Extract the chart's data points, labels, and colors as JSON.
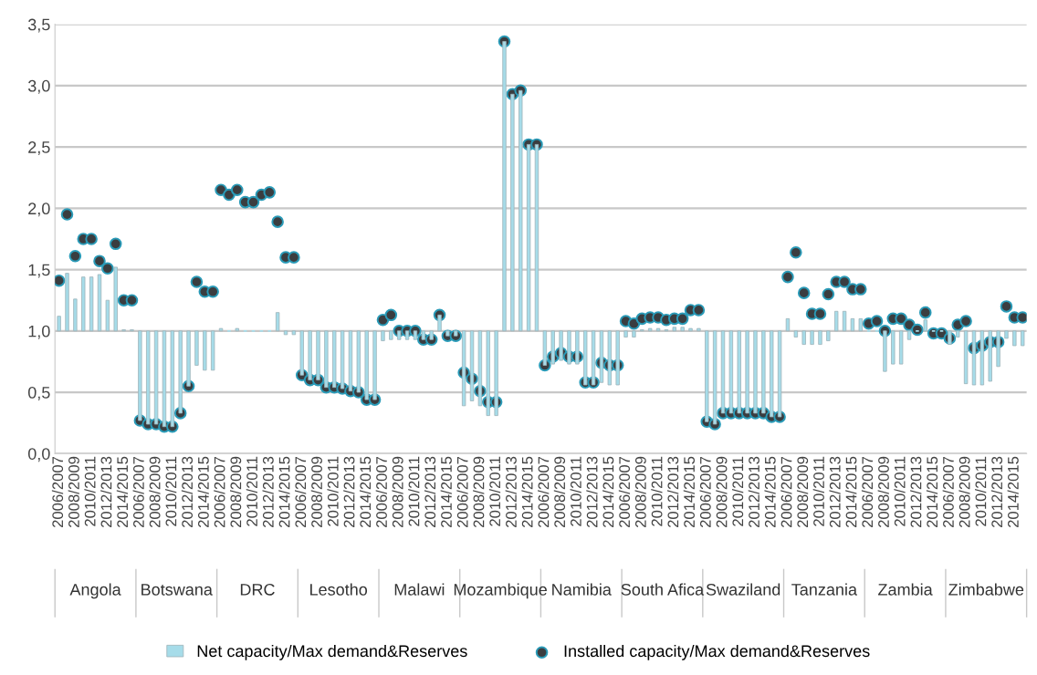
{
  "chart_data": {
    "type": "bar",
    "categories": [
      "2006/2007",
      null,
      "2008/2009",
      null,
      "2010/2011",
      null,
      "2012/2013",
      null,
      "2014/2015",
      null,
      "2006/2007",
      null,
      "2008/2009",
      null,
      "2010/2011",
      null,
      "2012/2013",
      null,
      "2014/2015",
      null,
      "2006/2007",
      null,
      "2008/2009",
      null,
      "2010/2011",
      null,
      "2012/2013",
      null,
      "2014/2015",
      null,
      "2006/2007",
      null,
      "2008/2009",
      null,
      "2010/2011",
      null,
      "2012/2013",
      null,
      "2014/2015",
      null,
      "2006/2007",
      null,
      "2008/2009",
      null,
      "2010/2011",
      null,
      "2012/2013",
      null,
      "2014/2015",
      null,
      "2006/2007",
      null,
      "2008/2009",
      null,
      "2010/2011",
      null,
      "2012/2013",
      null,
      "2014/2015",
      null,
      "2006/2007",
      null,
      "2008/2009",
      null,
      "2010/2011",
      null,
      "2012/2013",
      null,
      "2014/2015",
      null,
      "2006/2007",
      null,
      "2008/2009",
      null,
      "2010/2011",
      null,
      "2012/2013",
      null,
      "2014/2015",
      null,
      "2006/2007",
      null,
      "2008/2009",
      null,
      "2010/2011",
      null,
      "2012/2013",
      null,
      "2014/2015",
      null,
      "2006/2007",
      null,
      "2008/2009",
      null,
      "2010/2011",
      null,
      "2012/2013",
      null,
      "2014/2015",
      null,
      "2006/2007",
      null,
      "2008/2009",
      null,
      "2010/2011",
      null,
      "2012/2013",
      null,
      "2014/2015",
      null,
      "2006/2007",
      null,
      "2008/2009",
      null,
      "2010/2011",
      null,
      "2012/2013",
      null,
      "2014/2015",
      null
    ],
    "annotations": [
      "Angola",
      "Botswana",
      "DRC",
      "Lesotho",
      "Malawi",
      "Mozambique",
      "Namibia",
      "South Afica",
      "Swaziland",
      "Tanzania",
      "Zambia",
      "Zimbabwe"
    ],
    "series": [
      {
        "name": "Net capacity/Max demand&Reserves",
        "color": "#a6dce9",
        "base": [
          1,
          1,
          1,
          1,
          1,
          1,
          1,
          1,
          1,
          1,
          1,
          1,
          1,
          1,
          1,
          1,
          1,
          1,
          1,
          1,
          1,
          1,
          1,
          1,
          1,
          1,
          1,
          1,
          1,
          1,
          1,
          1,
          1,
          1,
          1,
          1,
          1,
          1,
          1,
          1,
          1,
          1,
          1,
          1,
          1,
          1,
          1,
          1,
          1,
          1,
          1,
          1,
          1,
          1,
          1,
          1,
          1,
          1,
          1,
          1,
          1,
          1,
          1,
          1,
          1,
          1,
          1,
          1,
          1,
          1,
          1,
          1,
          1,
          1,
          1,
          1,
          1,
          1,
          1,
          1,
          1,
          1,
          1,
          1,
          1,
          1,
          1,
          1,
          1,
          1,
          1,
          1,
          1,
          1,
          1,
          1,
          1,
          1,
          1,
          1,
          1,
          1,
          1,
          1,
          1,
          1,
          1,
          1,
          1,
          1,
          1,
          1,
          1,
          1,
          1,
          1,
          1,
          1,
          1,
          1
        ],
        "values": [
          0.12,
          0.47,
          0.26,
          0.44,
          0.44,
          0.46,
          0.25,
          0.52,
          0.01,
          0.01,
          -0.73,
          -0.76,
          -0.76,
          -0.78,
          -0.78,
          -0.67,
          -0.45,
          -0.28,
          -0.32,
          -0.32,
          0.02,
          0,
          0.02,
          0,
          0,
          0,
          0,
          0.15,
          -0.03,
          -0.03,
          -0.36,
          -0.4,
          -0.4,
          -0.46,
          -0.46,
          -0.47,
          -0.49,
          -0.5,
          -0.56,
          -0.56,
          -0.08,
          -0.07,
          -0.07,
          -0.07,
          -0.07,
          -0.07,
          -0.07,
          0.13,
          -0.04,
          -0.04,
          -0.61,
          -0.57,
          -0.61,
          -0.69,
          -0.69,
          2.36,
          1.93,
          1.96,
          1.52,
          1.52,
          -0.28,
          -0.27,
          -0.24,
          -0.27,
          -0.27,
          -0.44,
          -0.44,
          -0.42,
          -0.44,
          -0.44,
          -0.05,
          -0.05,
          0.01,
          0.02,
          0.02,
          0.01,
          0.03,
          0.03,
          0.02,
          0.02,
          -0.74,
          -0.76,
          -0.67,
          -0.67,
          -0.67,
          -0.67,
          -0.67,
          -0.67,
          -0.7,
          -0.7,
          0.1,
          -0.05,
          -0.11,
          -0.11,
          -0.11,
          -0.08,
          0.16,
          0.16,
          0.1,
          0.1,
          0,
          0,
          -0.33,
          -0.27,
          -0.27,
          -0.07,
          0,
          0.09,
          0,
          0,
          -0.11,
          -0.05,
          -0.43,
          -0.44,
          -0.44,
          -0.41,
          -0.29,
          -0.06,
          -0.12,
          -0.12
        ]
      },
      {
        "name": "Installed capacity/Max demand&Reserves",
        "type": "scatter",
        "color": "#3a3d40",
        "values": [
          1.41,
          1.95,
          1.61,
          1.75,
          1.75,
          1.57,
          1.51,
          1.71,
          1.25,
          1.25,
          0.27,
          0.24,
          0.24,
          0.22,
          0.22,
          0.33,
          0.55,
          1.4,
          1.32,
          1.32,
          2.15,
          2.11,
          2.15,
          2.05,
          2.05,
          2.11,
          2.13,
          1.89,
          1.6,
          1.6,
          0.64,
          0.6,
          0.6,
          0.54,
          0.54,
          0.53,
          0.51,
          0.5,
          0.44,
          0.44,
          1.09,
          1.13,
          1.0,
          1.0,
          1.0,
          0.93,
          0.93,
          1.13,
          0.96,
          0.96,
          0.66,
          0.61,
          0.51,
          0.42,
          0.42,
          3.36,
          2.93,
          2.96,
          2.52,
          2.52,
          0.72,
          0.79,
          0.82,
          0.79,
          0.79,
          0.58,
          0.58,
          0.74,
          0.72,
          0.72,
          1.08,
          1.06,
          1.1,
          1.11,
          1.11,
          1.09,
          1.1,
          1.1,
          1.17,
          1.17,
          0.26,
          0.24,
          0.33,
          0.33,
          0.33,
          0.33,
          0.33,
          0.33,
          0.3,
          0.3,
          1.44,
          1.64,
          1.31,
          1.14,
          1.14,
          1.3,
          1.4,
          1.4,
          1.34,
          1.34,
          1.06,
          1.08,
          1.0,
          1.1,
          1.1,
          1.05,
          1.01,
          1.15,
          0.98,
          0.98,
          0.94,
          1.05,
          1.08,
          0.86,
          0.88,
          0.91,
          0.91,
          1.2,
          1.11,
          1.11
        ]
      }
    ],
    "ylim": [
      0,
      3.5
    ],
    "yticks": [
      {
        "value": 0,
        "label": "0,0"
      },
      {
        "value": 0.5,
        "label": "0,5"
      },
      {
        "value": 1,
        "label": "1,0"
      },
      {
        "value": 1.5,
        "label": "1,5"
      },
      {
        "value": 2,
        "label": "2,0"
      },
      {
        "value": 2.5,
        "label": "2,5"
      },
      {
        "value": 3,
        "label": "3,0"
      },
      {
        "value": 3.5,
        "label": "3,5"
      }
    ],
    "grid": "y",
    "legend": "bottom",
    "marker": "circle"
  }
}
